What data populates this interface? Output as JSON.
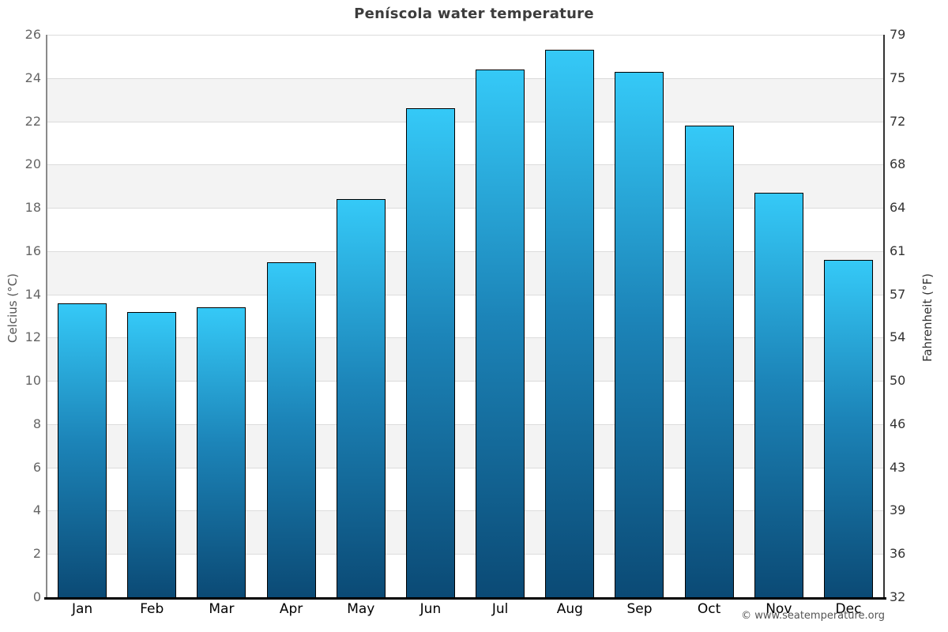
{
  "chart": {
    "title": "Peníscola water temperature",
    "y_left_label": "Celcius (°C)",
    "y_right_label": "Fahrenheit (°F)",
    "copyright": "© www.seatemperature.org"
  },
  "chart_data": {
    "type": "bar",
    "title": "Peníscola water temperature",
    "categories": [
      "Jan",
      "Feb",
      "Mar",
      "Apr",
      "May",
      "Jun",
      "Jul",
      "Aug",
      "Sep",
      "Oct",
      "Nov",
      "Dec"
    ],
    "values": [
      13.6,
      13.2,
      13.4,
      15.5,
      18.4,
      22.6,
      24.4,
      25.3,
      24.3,
      21.8,
      18.7,
      15.6
    ],
    "xlabel": "",
    "ylabel_left": "Celcius (°C)",
    "ylabel_right": "Fahrenheit (°F)",
    "ylim": [
      0,
      26
    ],
    "tick_step": 2,
    "celsius_ticks_top_to_bottom": [
      26,
      24,
      22,
      20,
      18,
      16,
      14,
      12,
      10,
      8,
      6,
      4,
      2,
      0
    ],
    "fahrenheit_ticks_top_to_bottom": [
      79,
      75,
      72,
      68,
      64,
      61,
      57,
      54,
      50,
      46,
      43,
      39,
      36,
      32
    ],
    "legend": "none",
    "grid": "horizontal gridlines every 2°C with alternating white/gray bands",
    "colors": {
      "bar_gradient_top": "#35c9f7",
      "bar_gradient_mid": "#1c84b8",
      "bar_gradient_bottom": "#0b4a75",
      "bar_border": "#000000",
      "band_gray": "#f3f3f3",
      "band_white": "#ffffff",
      "gridline": "#dcdcdc",
      "title_text": "#3c3c3c",
      "left_tick_text": "#666666",
      "right_tick_text": "#333333",
      "month_text": "#000000",
      "bottom_axis": "#000000"
    }
  }
}
